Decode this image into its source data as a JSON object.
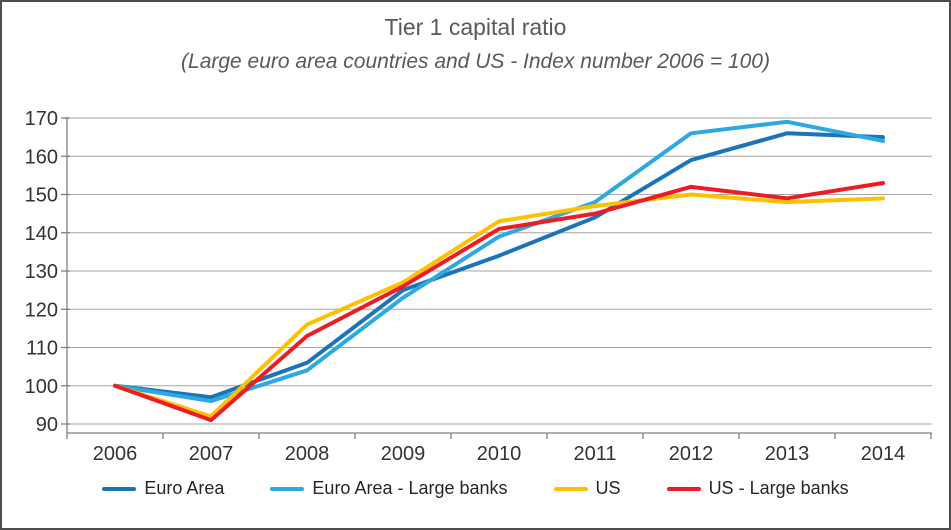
{
  "window": {
    "background": "#FFFFFF",
    "border_color": "#4D4D4D"
  },
  "chart_data": {
    "type": "line",
    "title": "Tier 1 capital ratio",
    "subtitle": "(Large euro area countries and US - Index number 2006 = 100)",
    "categories": [
      "2006",
      "2007",
      "2008",
      "2009",
      "2010",
      "2011",
      "2012",
      "2013",
      "2014"
    ],
    "series": [
      {
        "name": "Euro Area",
        "color": "#1B74B8",
        "values": [
          100,
          97,
          106,
          125,
          134,
          144,
          159,
          166,
          165
        ]
      },
      {
        "name": "Euro Area - Large banks",
        "color": "#2CA9E1",
        "values": [
          100,
          96,
          104,
          123,
          139,
          148,
          166,
          169,
          164
        ]
      },
      {
        "name": "US",
        "color": "#FFC000",
        "values": [
          100,
          92,
          116,
          127,
          143,
          147,
          150,
          148,
          149
        ]
      },
      {
        "name": "US - Large banks",
        "color": "#ED1C24",
        "values": [
          100,
          91,
          113,
          126,
          141,
          145,
          152,
          149,
          153
        ]
      }
    ],
    "xlabel": "",
    "ylabel": "",
    "y_ticks": [
      90,
      100,
      110,
      120,
      130,
      140,
      150,
      160,
      170
    ],
    "ylim": [
      90,
      170
    ],
    "grid": true,
    "legend_position": "bottom",
    "styles": {
      "gridline_color": "#A6A6A6",
      "axis_color": "#808080",
      "tick_label_color": "#333333",
      "title_color": "#595959",
      "line_width": 4
    }
  }
}
